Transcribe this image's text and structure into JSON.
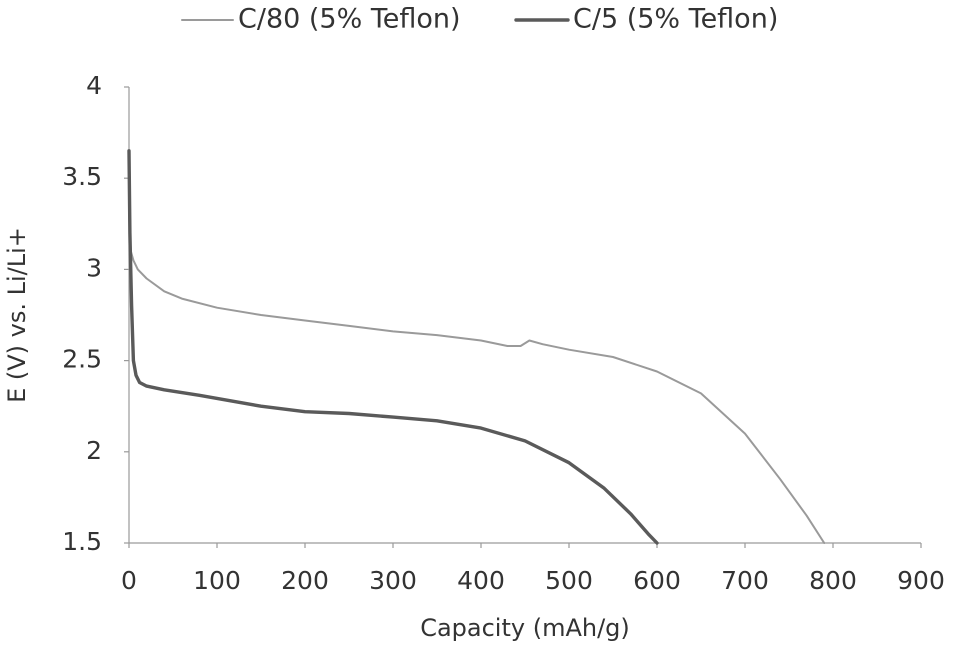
{
  "chart_data": {
    "type": "line",
    "title": "",
    "xlabel": "Capacity (mAh/g)",
    "ylabel": "E (V) vs. Li/Li+",
    "xlim": [
      0,
      900
    ],
    "ylim": [
      1.5,
      4
    ],
    "xticks": [
      "0",
      "100",
      "200",
      "300",
      "400",
      "500",
      "600",
      "700",
      "800",
      "900"
    ],
    "yticks": [
      "1.5",
      "2",
      "2.5",
      "3",
      "3.5",
      "4"
    ],
    "grid": false,
    "legend_position": "top-center",
    "series": [
      {
        "name": "C/80 (5% Teflon)",
        "color": "#9a9a9a",
        "x": [
          0,
          2,
          5,
          10,
          20,
          40,
          60,
          100,
          150,
          200,
          250,
          300,
          350,
          400,
          430,
          445,
          455,
          470,
          500,
          550,
          600,
          650,
          700,
          740,
          770,
          790
        ],
        "y": [
          3.3,
          3.1,
          3.05,
          3.0,
          2.95,
          2.88,
          2.84,
          2.79,
          2.75,
          2.72,
          2.69,
          2.66,
          2.64,
          2.61,
          2.58,
          2.58,
          2.61,
          2.59,
          2.56,
          2.52,
          2.44,
          2.32,
          2.1,
          1.85,
          1.65,
          1.5
        ]
      },
      {
        "name": "C/5 (5% Teflon)",
        "color": "#5a5a5a",
        "x": [
          0,
          1,
          3,
          5,
          8,
          12,
          20,
          40,
          80,
          150,
          200,
          250,
          300,
          350,
          400,
          450,
          500,
          540,
          570,
          590,
          600
        ],
        "y": [
          3.65,
          3.2,
          2.8,
          2.5,
          2.42,
          2.38,
          2.36,
          2.34,
          2.31,
          2.25,
          2.22,
          2.21,
          2.19,
          2.17,
          2.13,
          2.06,
          1.94,
          1.8,
          1.66,
          1.55,
          1.5
        ]
      }
    ]
  }
}
